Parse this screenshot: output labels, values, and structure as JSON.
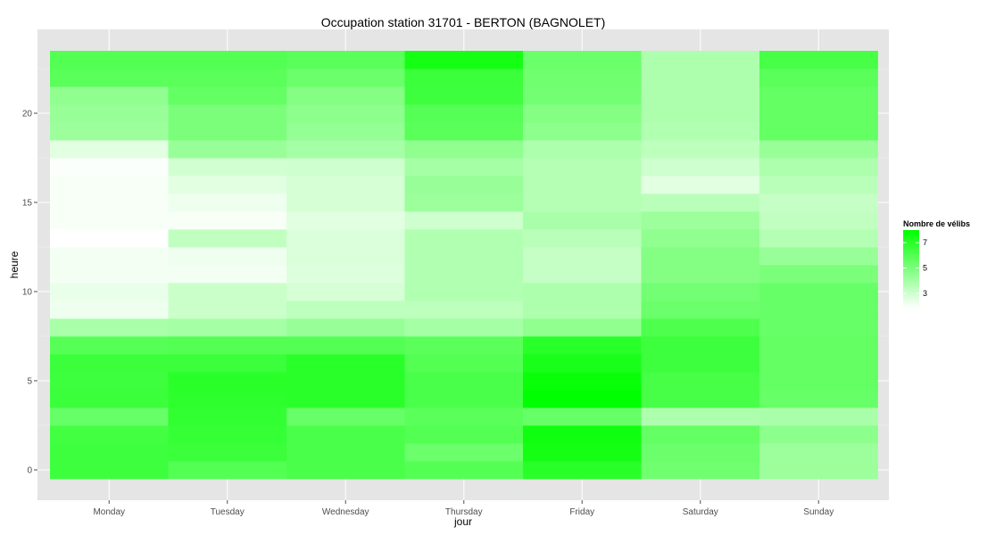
{
  "chart_data": {
    "type": "heatmap",
    "title": "Occupation station 31701 - BERTON (BAGNOLET)",
    "xlabel": "jour",
    "ylabel": "heure",
    "x_categories": [
      "Monday",
      "Tuesday",
      "Wednesday",
      "Thursday",
      "Friday",
      "Saturday",
      "Sunday"
    ],
    "y_hours": [
      0,
      1,
      2,
      3,
      4,
      5,
      6,
      7,
      8,
      9,
      10,
      11,
      12,
      13,
      14,
      15,
      16,
      17,
      18,
      19,
      20,
      21,
      22,
      23
    ],
    "y_ticks": [
      0,
      5,
      10,
      15,
      20
    ],
    "ylim": [
      -0.5,
      23.5
    ],
    "legend": {
      "title": "Nombre de vélibs",
      "ticks": [
        3,
        5,
        7
      ],
      "range": [
        1.8,
        8
      ],
      "low_color": "#ffffff",
      "high_color": "#00ff00",
      "placement": "right"
    },
    "grid": true,
    "panel_background": "#e5e5e5",
    "values": [
      [
        6.5,
        6.0,
        6.2,
        6.0,
        7.0,
        5.3,
        4.2
      ],
      [
        6.5,
        6.6,
        6.2,
        5.4,
        7.5,
        5.4,
        4.2
      ],
      [
        6.4,
        6.7,
        6.2,
        6.0,
        7.6,
        5.6,
        4.6
      ],
      [
        5.5,
        6.8,
        5.5,
        5.8,
        5.5,
        3.8,
        3.9
      ],
      [
        6.6,
        6.9,
        7.0,
        6.2,
        8.0,
        6.3,
        5.5
      ],
      [
        6.5,
        7.0,
        7.0,
        6.2,
        7.8,
        6.3,
        5.6
      ],
      [
        6.6,
        6.6,
        7.0,
        6.0,
        7.4,
        6.5,
        5.6
      ],
      [
        5.9,
        6.0,
        6.0,
        5.8,
        7.0,
        6.5,
        5.6
      ],
      [
        3.9,
        4.0,
        4.3,
        4.0,
        4.5,
        6.1,
        5.5
      ],
      [
        2.2,
        3.1,
        3.4,
        3.4,
        3.8,
        5.4,
        5.5
      ],
      [
        2.3,
        3.1,
        2.8,
        3.7,
        3.8,
        5.2,
        5.5
      ],
      [
        2.1,
        2.1,
        2.6,
        3.7,
        3.2,
        4.8,
        5.0
      ],
      [
        2.1,
        2.2,
        2.7,
        3.7,
        3.2,
        4.8,
        4.3
      ],
      [
        1.8,
        3.3,
        2.7,
        3.7,
        3.5,
        4.5,
        3.6
      ],
      [
        2.0,
        2.0,
        2.5,
        3.0,
        3.9,
        4.2,
        3.3
      ],
      [
        2.0,
        2.2,
        2.8,
        4.2,
        3.6,
        3.5,
        3.2
      ],
      [
        2.0,
        2.5,
        2.8,
        4.3,
        3.6,
        2.5,
        3.5
      ],
      [
        1.9,
        2.9,
        3.0,
        4.0,
        3.6,
        3.0,
        3.8
      ],
      [
        2.5,
        4.3,
        4.0,
        4.5,
        3.8,
        3.4,
        4.3
      ],
      [
        4.2,
        5.0,
        4.4,
        5.8,
        4.6,
        3.7,
        5.6
      ],
      [
        4.3,
        5.0,
        4.6,
        5.9,
        4.8,
        3.8,
        5.6
      ],
      [
        4.5,
        5.6,
        4.8,
        6.5,
        5.2,
        3.8,
        5.6
      ],
      [
        5.8,
        5.8,
        5.4,
        6.6,
        5.3,
        3.8,
        5.8
      ],
      [
        6.0,
        6.0,
        5.8,
        7.5,
        5.4,
        3.8,
        6.3
      ]
    ]
  }
}
